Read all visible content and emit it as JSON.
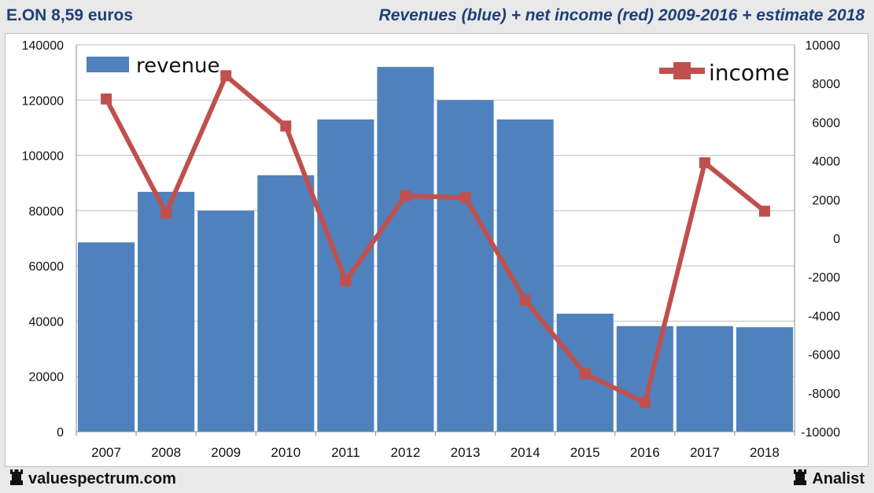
{
  "header": {
    "left_title": "E.ON 8,59 euros",
    "right_title": "Revenues (blue) + net income (red) 2009-2016 + estimate 2018"
  },
  "footer": {
    "left_brand": "valuespectrum.com",
    "right_brand": "Analist",
    "brand_icon": "rook-icon"
  },
  "colors": {
    "revenue": "#4f81bd",
    "income": "#c0504d",
    "income_marker": "#c0504d",
    "grid": "#bfbfbf",
    "title": "#1f3f7a"
  },
  "chart_data": {
    "type": "bar",
    "title": "Revenues (blue) + net income (red) 2009-2016 + estimate 2018",
    "categories": [
      "2007",
      "2008",
      "2009",
      "2010",
      "2011",
      "2012",
      "2013",
      "2014",
      "2015",
      "2016",
      "2017",
      "2018"
    ],
    "series": [
      {
        "name": "revenue",
        "type": "bar",
        "axis": "left",
        "values": [
          68500,
          86800,
          80000,
          92800,
          113000,
          132000,
          120000,
          113000,
          42700,
          38200,
          38200,
          37800
        ]
      },
      {
        "name": "income",
        "type": "line",
        "axis": "right",
        "values": [
          7200,
          1300,
          8400,
          5800,
          -2200,
          2200,
          2100,
          -3200,
          -7000,
          -8500,
          3900,
          1400
        ]
      }
    ],
    "y_left": {
      "min": 0,
      "max": 140000,
      "ticks": [
        0,
        20000,
        40000,
        60000,
        80000,
        100000,
        120000,
        140000
      ]
    },
    "y_right": {
      "min": -10000,
      "max": 10000,
      "ticks": [
        -10000,
        -8000,
        -6000,
        -4000,
        -2000,
        0,
        2000,
        4000,
        6000,
        8000,
        10000
      ]
    },
    "grid": true,
    "legend": [
      {
        "label": "revenue",
        "position": "top-left"
      },
      {
        "label": "income",
        "position": "top-right"
      }
    ]
  }
}
